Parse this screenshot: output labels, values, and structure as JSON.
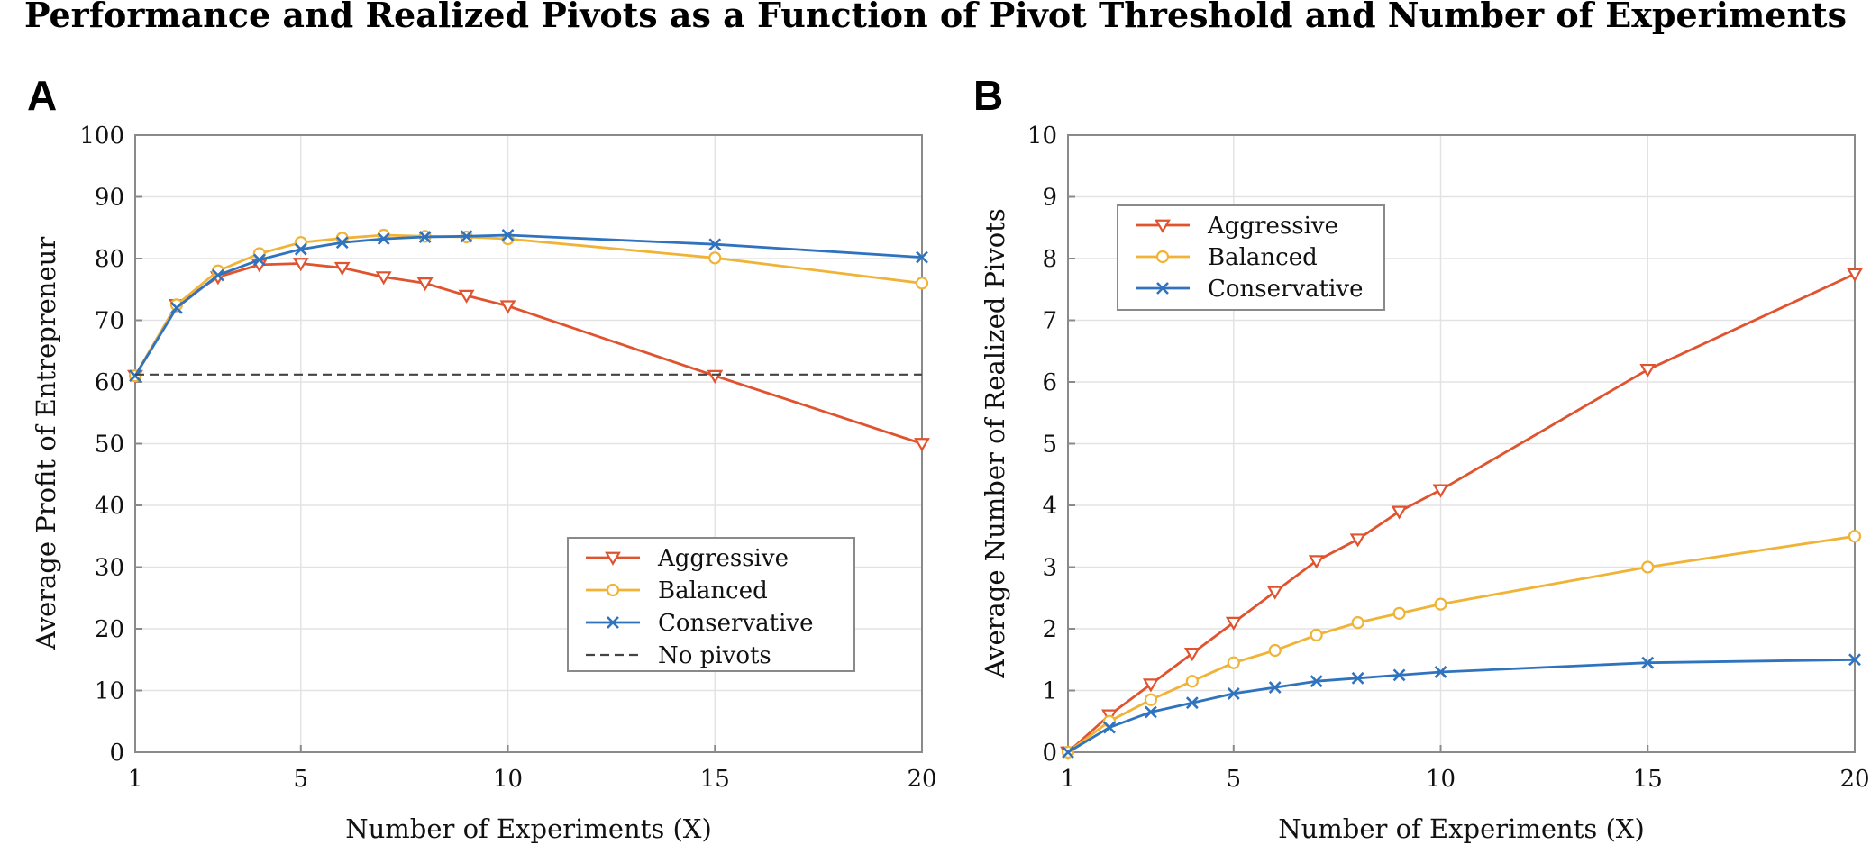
{
  "figure_title": "Performance and Realized Pivots as a Function of Pivot Threshold and Number of Experiments",
  "colors": {
    "Aggressive": "#e0532f",
    "Balanced": "#f0b336",
    "Conservative": "#2f73bf",
    "No pivots": "#444444"
  },
  "chart_data": [
    {
      "panel": "A",
      "type": "line",
      "xlabel": "Number of Experiments (X)",
      "ylabel": "Average Profit of Entrepreneur",
      "xlim": [
        1,
        20
      ],
      "ylim": [
        0,
        100
      ],
      "xticks": [
        1,
        5,
        10,
        15,
        20
      ],
      "yticks": [
        0,
        10,
        20,
        30,
        40,
        50,
        60,
        70,
        80,
        90,
        100
      ],
      "grid": true,
      "legend_position": "bottom-right",
      "series": [
        {
          "name": "Aggressive",
          "marker": "triangle-down",
          "x": [
            1,
            2,
            3,
            4,
            5,
            6,
            7,
            8,
            9,
            10,
            15,
            20
          ],
          "y": [
            61,
            72.5,
            77,
            79,
            79.2,
            78.5,
            77,
            76,
            74,
            72.3,
            61,
            50
          ]
        },
        {
          "name": "Balanced",
          "marker": "circle",
          "x": [
            1,
            2,
            3,
            4,
            5,
            6,
            7,
            8,
            9,
            10,
            15,
            20
          ],
          "y": [
            61,
            72.5,
            78,
            80.8,
            82.6,
            83.3,
            83.8,
            83.6,
            83.5,
            83.2,
            80.1,
            76
          ]
        },
        {
          "name": "Conservative",
          "marker": "x",
          "x": [
            1,
            2,
            3,
            4,
            5,
            6,
            7,
            8,
            9,
            10,
            15,
            20
          ],
          "y": [
            61,
            72,
            77.3,
            79.8,
            81.5,
            82.6,
            83.2,
            83.5,
            83.6,
            83.8,
            82.3,
            80.2
          ]
        },
        {
          "name": "No pivots",
          "marker": "none",
          "style": "dashed",
          "x": [
            1,
            20
          ],
          "y": [
            61.2,
            61.2
          ]
        }
      ]
    },
    {
      "panel": "B",
      "type": "line",
      "xlabel": "Number of Experiments (X)",
      "ylabel": "Average Number of Realized Pivots",
      "xlim": [
        1,
        20
      ],
      "ylim": [
        0,
        10
      ],
      "xticks": [
        1,
        5,
        10,
        15,
        20
      ],
      "yticks": [
        0,
        1,
        2,
        3,
        4,
        5,
        6,
        7,
        8,
        9,
        10
      ],
      "grid": true,
      "legend_position": "top-left",
      "series": [
        {
          "name": "Aggressive",
          "marker": "triangle-down",
          "x": [
            1,
            2,
            3,
            4,
            5,
            6,
            7,
            8,
            9,
            10,
            15,
            20
          ],
          "y": [
            0,
            0.6,
            1.1,
            1.6,
            2.1,
            2.6,
            3.1,
            3.45,
            3.9,
            4.25,
            6.2,
            7.75
          ]
        },
        {
          "name": "Balanced",
          "marker": "circle",
          "x": [
            1,
            2,
            3,
            4,
            5,
            6,
            7,
            8,
            9,
            10,
            15,
            20
          ],
          "y": [
            0,
            0.5,
            0.85,
            1.15,
            1.45,
            1.65,
            1.9,
            2.1,
            2.25,
            2.4,
            3.0,
            3.5
          ]
        },
        {
          "name": "Conservative",
          "marker": "x",
          "x": [
            1,
            2,
            3,
            4,
            5,
            6,
            7,
            8,
            9,
            10,
            15,
            20
          ],
          "y": [
            0,
            0.4,
            0.65,
            0.8,
            0.95,
            1.05,
            1.15,
            1.2,
            1.25,
            1.3,
            1.45,
            1.5
          ]
        }
      ]
    }
  ]
}
